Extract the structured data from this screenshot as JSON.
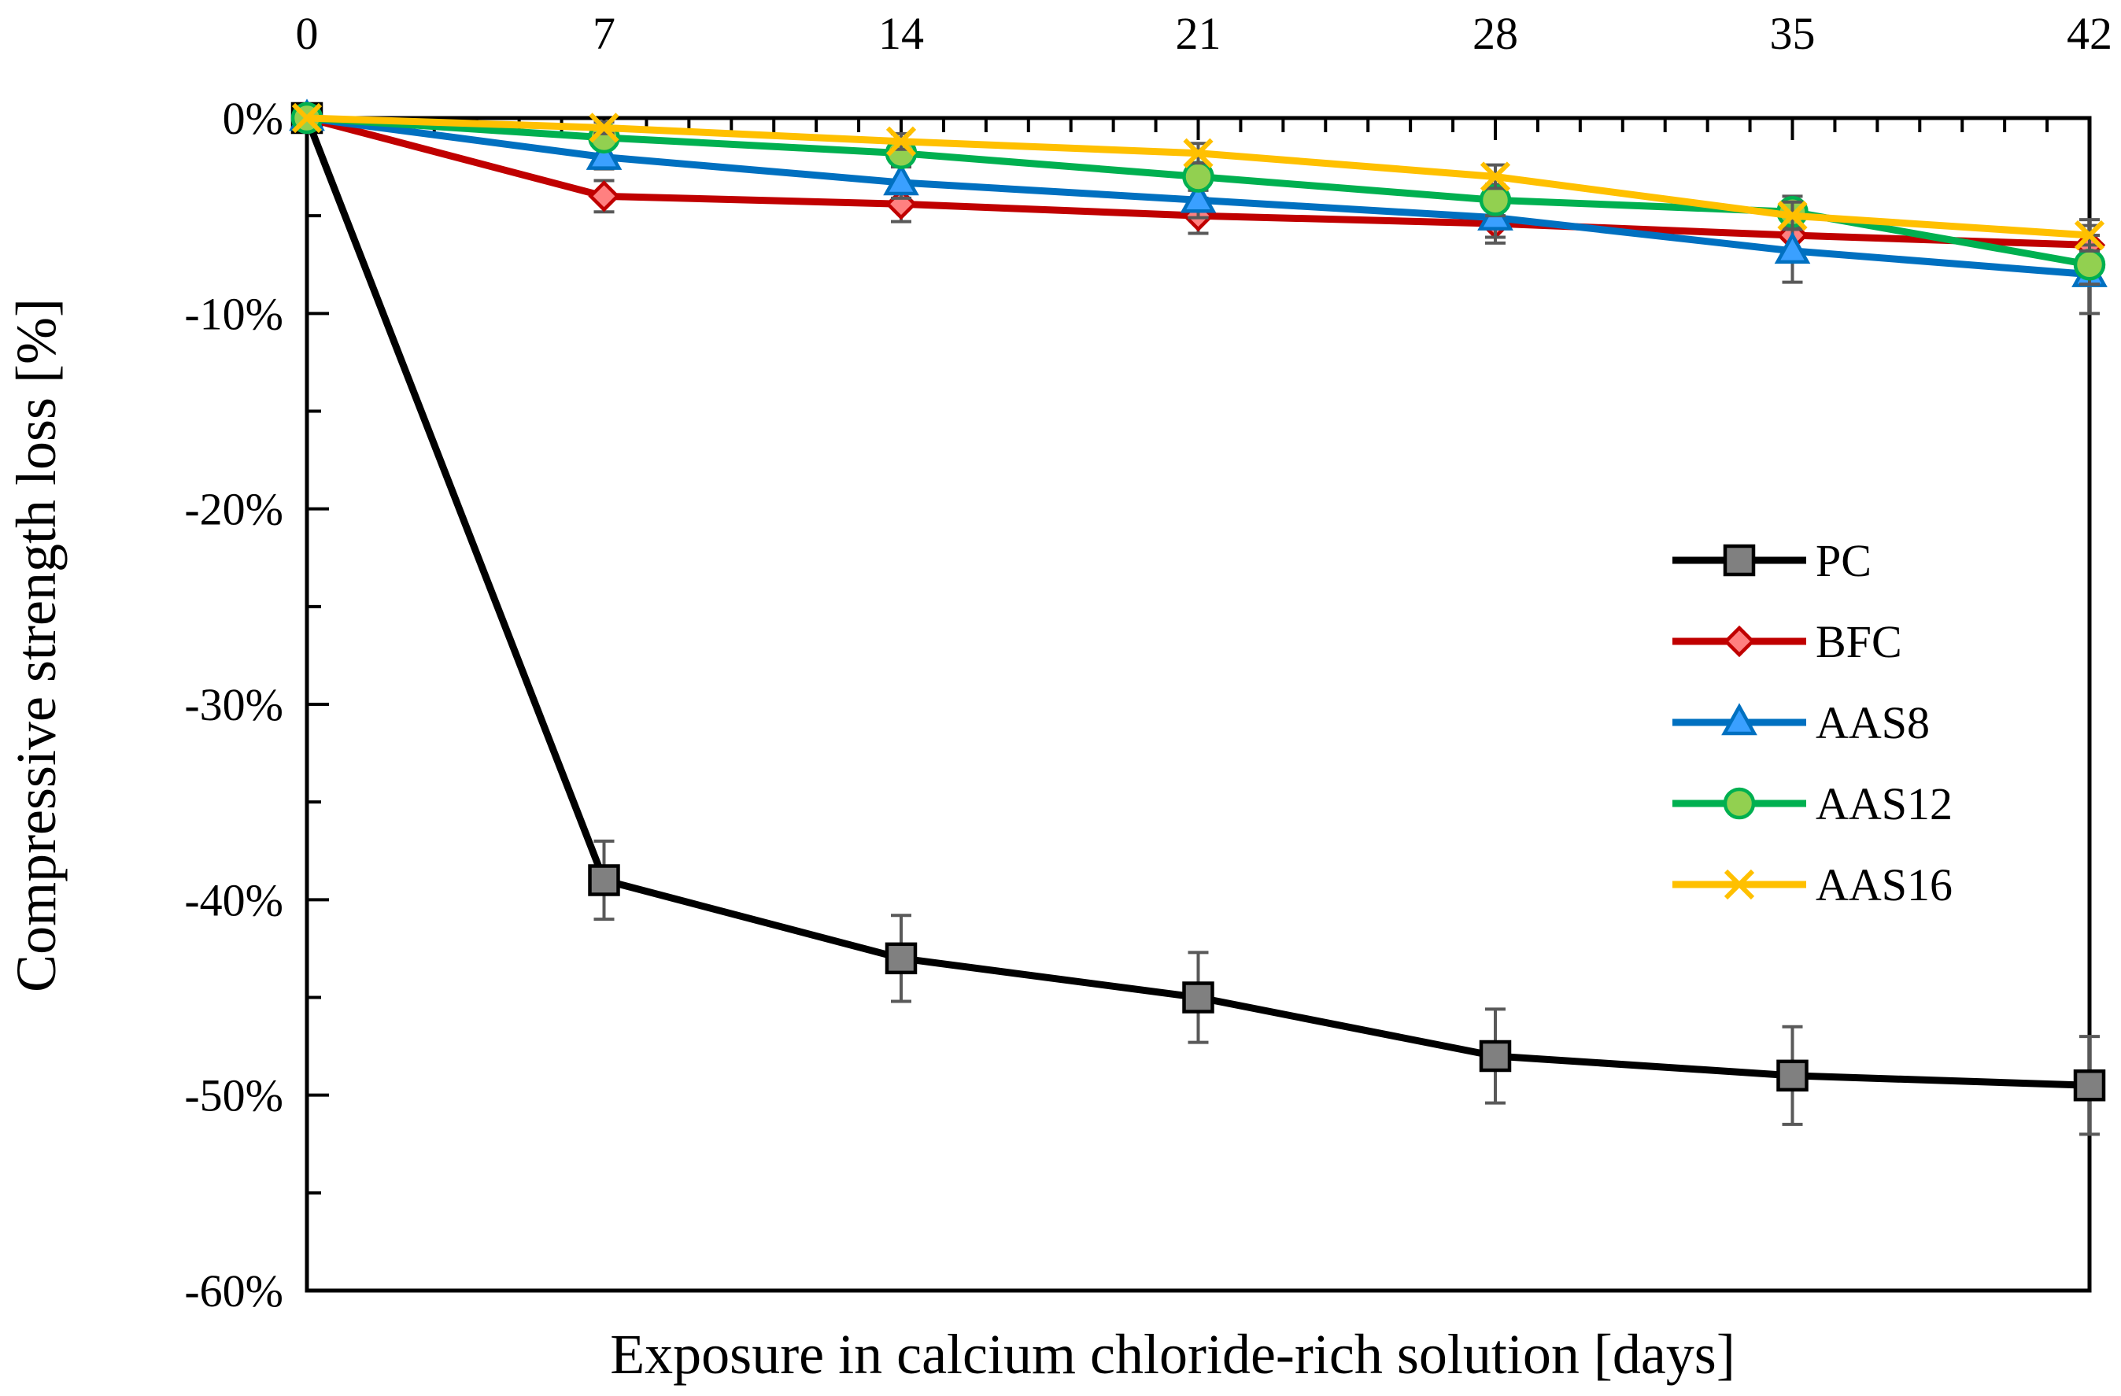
{
  "chart_data": {
    "type": "line",
    "title": "",
    "xlabel": "Exposure in calcium chloride-rich solution [days]",
    "ylabel": "Compressive strength loss [%]",
    "x": [
      0,
      7,
      14,
      21,
      28,
      35,
      42
    ],
    "x_ticks": [
      "0",
      "7",
      "14",
      "21",
      "28",
      "35",
      "42"
    ],
    "xlim": [
      0,
      42
    ],
    "ylim": [
      -60,
      0
    ],
    "y_ticks": [
      0,
      -10,
      -20,
      -30,
      -40,
      -50,
      -60
    ],
    "y_tick_labels": [
      "0%",
      "-10%",
      "-20%",
      "-30%",
      "-40%",
      "-50%",
      "-60%"
    ],
    "x_axis_position": "top",
    "grid": false,
    "legend_position": "right-middle",
    "series": [
      {
        "name": "PC",
        "color": "#000000",
        "marker": "square",
        "marker_fill": "#808080",
        "values": [
          0,
          -39,
          -43,
          -45,
          -48,
          -49,
          -49.5
        ],
        "errors": [
          0,
          2.0,
          2.2,
          2.3,
          2.4,
          2.5,
          2.5
        ]
      },
      {
        "name": "BFC",
        "color": "#C00000",
        "marker": "diamond",
        "marker_fill": "#FF8080",
        "values": [
          0,
          -4.0,
          -4.4,
          -5.0,
          -5.4,
          -6.0,
          -6.5
        ],
        "errors": [
          0,
          0.8,
          0.9,
          0.9,
          1.0,
          1.0,
          1.0
        ]
      },
      {
        "name": "AAS8",
        "color": "#0070C0",
        "marker": "triangle",
        "marker_fill": "#3AA0FF",
        "values": [
          0,
          -2.0,
          -3.3,
          -4.2,
          -5.1,
          -6.8,
          -8.0
        ],
        "errors": [
          0,
          0.6,
          0.8,
          0.9,
          1.0,
          1.6,
          2.0
        ]
      },
      {
        "name": "AAS12",
        "color": "#00B050",
        "marker": "circle",
        "marker_fill": "#92D050",
        "values": [
          0,
          -1.0,
          -1.8,
          -3.0,
          -4.2,
          -4.8,
          -7.5
        ],
        "errors": [
          0,
          0.4,
          0.6,
          0.7,
          0.8,
          0.8,
          1.0
        ]
      },
      {
        "name": "AAS16",
        "color": "#FFC000",
        "marker": "x",
        "marker_fill": "#FFC000",
        "values": [
          0,
          -0.5,
          -1.2,
          -1.8,
          -3.0,
          -5.0,
          -6.0
        ],
        "errors": [
          0,
          0.3,
          0.4,
          0.5,
          0.6,
          0.7,
          0.8
        ]
      }
    ]
  }
}
